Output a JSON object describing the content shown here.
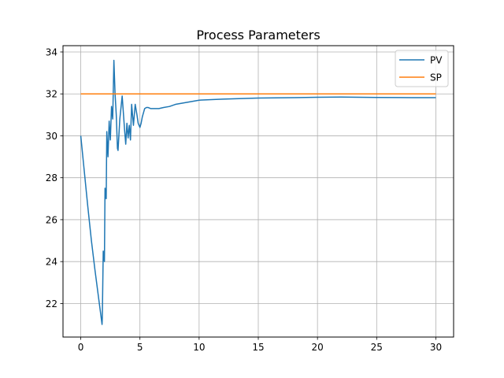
{
  "chart_data": {
    "type": "line",
    "title": "Process Parameters",
    "xlabel": "",
    "ylabel": "",
    "xlim": [
      -1.5,
      31.5
    ],
    "ylim": [
      20.4,
      34.3
    ],
    "xticks": [
      0,
      5,
      10,
      15,
      20,
      25,
      30
    ],
    "xtick_labels": [
      "0",
      "5",
      "10",
      "15",
      "20",
      "25",
      "30"
    ],
    "yticks": [
      22,
      24,
      26,
      28,
      30,
      32,
      34
    ],
    "ytick_labels": [
      "22",
      "24",
      "26",
      "28",
      "30",
      "32",
      "34"
    ],
    "grid": true,
    "legend": "top-right",
    "series": [
      {
        "name": "PV",
        "color": "#1f77b4",
        "x": [
          0,
          0.3,
          0.6,
          0.9,
          1.2,
          1.5,
          1.8,
          1.82,
          1.9,
          2.0,
          2.05,
          2.15,
          2.2,
          2.3,
          2.4,
          2.5,
          2.6,
          2.7,
          2.8,
          2.9,
          3.0,
          3.1,
          3.15,
          3.3,
          3.5,
          3.7,
          3.8,
          3.9,
          4.0,
          4.1,
          4.2,
          4.3,
          4.45,
          4.6,
          4.75,
          4.85,
          5.0,
          5.1,
          5.2,
          5.3,
          5.4,
          5.55,
          5.7,
          5.9,
          6.2,
          6.6,
          7.0,
          7.5,
          8.0,
          9.0,
          10,
          12,
          15,
          18,
          20,
          22,
          25,
          28,
          30
        ],
        "y": [
          30.0,
          28.3,
          26.6,
          25.0,
          23.6,
          22.3,
          21.0,
          21.3,
          24.5,
          24.0,
          27.5,
          27.0,
          30.2,
          29.0,
          30.7,
          29.8,
          31.4,
          30.8,
          33.6,
          32.0,
          31.0,
          29.4,
          29.3,
          30.8,
          31.9,
          30.3,
          29.6,
          30.6,
          29.9,
          30.5,
          29.8,
          31.5,
          30.5,
          31.5,
          31.0,
          30.6,
          30.4,
          30.6,
          30.9,
          31.1,
          31.3,
          31.35,
          31.35,
          31.3,
          31.3,
          31.3,
          31.35,
          31.4,
          31.5,
          31.6,
          31.7,
          31.75,
          31.8,
          31.82,
          31.84,
          31.85,
          31.83,
          31.82,
          31.82
        ]
      },
      {
        "name": "SP",
        "color": "#ff7f0e",
        "x": [
          0,
          30
        ],
        "y": [
          32,
          32
        ]
      }
    ]
  }
}
